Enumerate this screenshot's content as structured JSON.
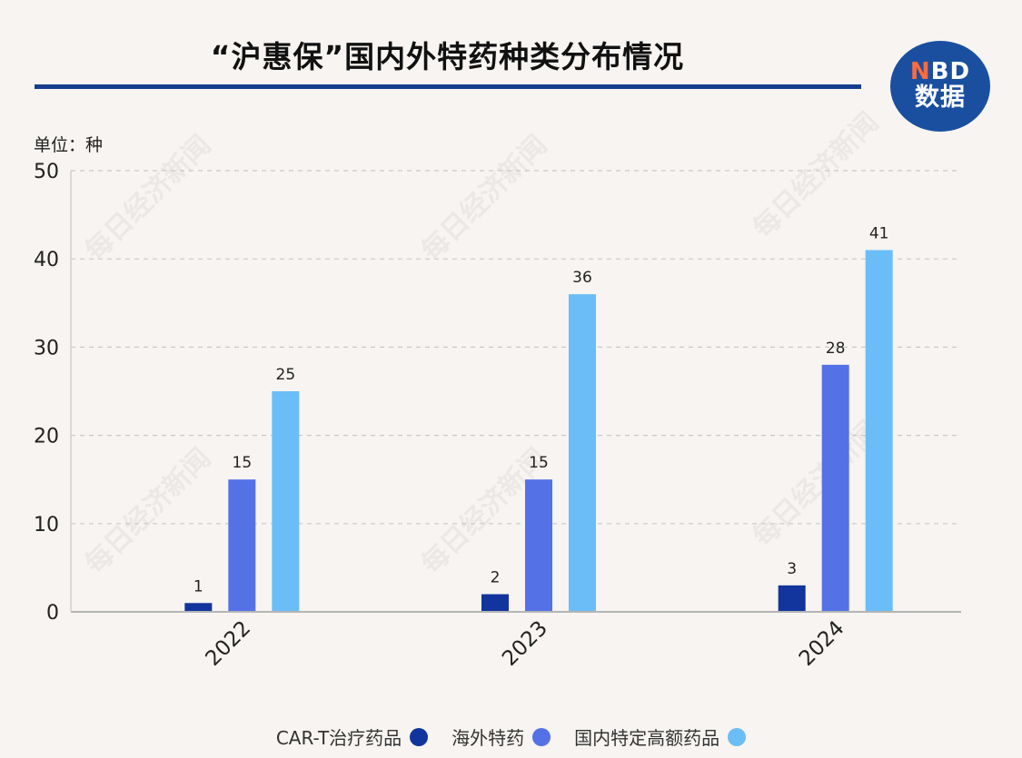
{
  "chart_data": {
    "type": "bar",
    "title": "“沪惠保”国内外特药种类分布情况",
    "unit_label": "单位：种",
    "categories": [
      "2022",
      "2023",
      "2024"
    ],
    "series": [
      {
        "name": "CAR-T治疗药品",
        "color": "#12349d",
        "values": [
          1,
          2,
          3
        ]
      },
      {
        "name": "海外特药",
        "color": "#5471e6",
        "values": [
          15,
          15,
          28
        ]
      },
      {
        "name": "国内特定高额药品",
        "color": "#6bbdf7",
        "values": [
          25,
          36,
          41
        ]
      }
    ],
    "ylim": [
      0,
      50
    ],
    "yticks": [
      0,
      10,
      20,
      30,
      40,
      50
    ],
    "grid": true,
    "legend_position": "bottom"
  },
  "logo": {
    "line1_accent": "N",
    "line1_rest": "BD",
    "line2": "数据"
  },
  "watermark_text": "每日经济新闻"
}
